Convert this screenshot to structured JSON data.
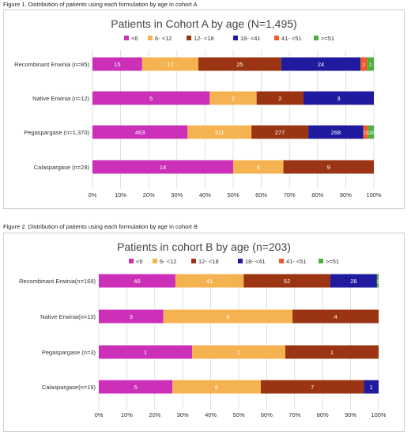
{
  "colors": {
    "s0": "#cc2fb8",
    "s1": "#f4b350",
    "s2": "#9a3412",
    "s3": "#1f1a9e",
    "s4": "#f05a28",
    "s5": "#4caf3e"
  },
  "chart_data": [
    {
      "type": "bar",
      "orientation": "horizontal",
      "stacked": "percent",
      "caption": "Figure 1. Distribution of patients using each formulation by age in cohort A",
      "title": "Patients in Cohort A by age (N=1,495)",
      "legend_position": "top",
      "categories": [
        "Recombinant Erwinia (n=85)",
        "Native Erwinia (n=12)",
        "Pegaspargase (n=1,370)",
        "Calaspargase (n=28)"
      ],
      "series": [
        {
          "name": "<6",
          "values": [
            15,
            5,
            463,
            14
          ]
        },
        {
          "name": "6- <12",
          "values": [
            17,
            2,
            311,
            5
          ]
        },
        {
          "name": "12- <18",
          "values": [
            25,
            2,
            277,
            9
          ]
        },
        {
          "name": "18- <41",
          "values": [
            24,
            3,
            268,
            0
          ]
        },
        {
          "name": "41- <51",
          "values": [
            2,
            0,
            23,
            0
          ]
        },
        {
          "name": ">=51",
          "values": [
            2,
            0,
            28,
            0
          ]
        }
      ],
      "xlim": [
        0,
        100
      ],
      "xticks": [
        "0%",
        "10%",
        "20%",
        "30%",
        "40%",
        "50%",
        "60%",
        "70%",
        "80%",
        "90%",
        "100%"
      ],
      "grid": true
    },
    {
      "type": "bar",
      "orientation": "horizontal",
      "stacked": "percent",
      "caption": "Figure 2. Distribution of patients using each formulation by age in cohort B",
      "title": "Patients in cohort B by age (n=203)",
      "legend_position": "top",
      "categories": [
        "Recombinant Erwinia(n=168)",
        "Native Erwinia(n=13)",
        "Pegaspargase (n=3)",
        "Calaspargase(n=19)"
      ],
      "series": [
        {
          "name": "<6",
          "values": [
            46,
            3,
            1,
            5
          ]
        },
        {
          "name": "6- <12",
          "values": [
            41,
            6,
            1,
            6
          ]
        },
        {
          "name": "12- <18",
          "values": [
            52,
            4,
            1,
            7
          ]
        },
        {
          "name": "18- <41",
          "values": [
            28,
            0,
            0,
            1
          ]
        },
        {
          "name": "41- <51",
          "values": [
            0,
            0,
            0,
            0
          ]
        },
        {
          "name": ">=51",
          "values": [
            1,
            0,
            0,
            0
          ]
        }
      ],
      "xlim": [
        0,
        100
      ],
      "xticks": [
        "0%",
        "10%",
        "20%",
        "30%",
        "40%",
        "50%",
        "60%",
        "70%",
        "80%",
        "90%",
        "100%"
      ],
      "grid": true
    }
  ]
}
